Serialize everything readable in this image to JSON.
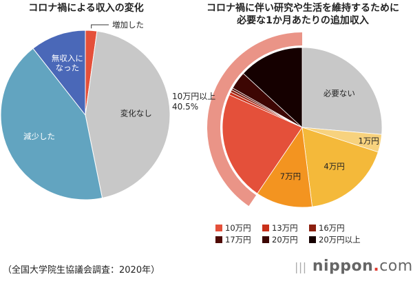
{
  "chart_data": [
    {
      "type": "pie",
      "title": "コロナ禍による収入の変化",
      "unit": "%",
      "slices": [
        {
          "label": "増加した",
          "value": 2.2,
          "color": "#e4503a",
          "label_color": "#222"
        },
        {
          "label": "変化なし",
          "value": 44.6,
          "color": "#c8c8c8",
          "label_color": "#222"
        },
        {
          "label": "減少した",
          "value": 42.6,
          "color": "#62a4c0",
          "label_color": "#ffffff"
        },
        {
          "label": "無収入に\nなった",
          "value": 10.6,
          "color": "#4a68b8",
          "label_color": "#ffffff"
        }
      ]
    },
    {
      "type": "pie",
      "title": "コロナ禍に伴い研究や生活を維持するために\n必要な1か月あたりの追加収入",
      "unit": "%",
      "slices": [
        {
          "label": "必要ない",
          "value": 26.4,
          "color": "#c8c8c8",
          "show_label": true
        },
        {
          "label": "1万円",
          "value": 3.6,
          "color": "#f7d27e",
          "show_label": true
        },
        {
          "label": "4万円",
          "value": 18.0,
          "color": "#f4b93a",
          "show_label": true
        },
        {
          "label": "7万円",
          "value": 11.5,
          "color": "#f39420",
          "show_label": true
        },
        {
          "label": "10万円",
          "value": 22.2,
          "color": "#e4503a",
          "show_label": false
        },
        {
          "label": "13万円",
          "value": 0.6,
          "color": "#c9301a",
          "show_label": false
        },
        {
          "label": "16万円",
          "value": 0.5,
          "color": "#8c200f",
          "show_label": false
        },
        {
          "label": "17万円",
          "value": 0.4,
          "color": "#4f0a04",
          "show_label": false
        },
        {
          "label": "20万円",
          "value": 3.6,
          "color": "#3d0603",
          "show_label": false
        },
        {
          "label": "20万円以上",
          "value": 13.2,
          "color": "#150000",
          "show_label": false
        }
      ],
      "group_annotation": {
        "label": "10万円以上\n40.5%",
        "value": 40.5,
        "ring_color": "#ea9487"
      },
      "legend": [
        "10万円",
        "13万円",
        "16万円",
        "17万円",
        "20万円",
        "20万円以上"
      ],
      "legend_placement": "bottom"
    }
  ],
  "footer": {
    "source": "（全国大学院生協議会調査：2020年）"
  },
  "logo": {
    "name": "nippon",
    "dot": ".",
    "tld": "com"
  }
}
